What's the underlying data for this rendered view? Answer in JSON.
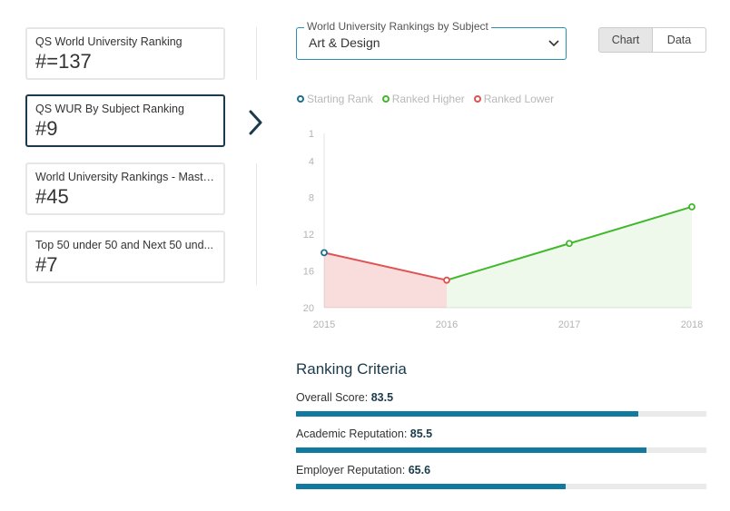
{
  "rankings": [
    {
      "label": "QS World University Ranking",
      "value": "#=137",
      "active": false
    },
    {
      "label": "QS WUR By Subject Ranking",
      "value": "#9",
      "active": true
    },
    {
      "label": "World University Rankings - Maste...",
      "value": "#45",
      "active": false
    },
    {
      "label": "Top 50 under 50 and Next 50 und...",
      "value": "#7",
      "active": false
    }
  ],
  "subject_select": {
    "legend": "World University Rankings by Subject",
    "value": "Art & Design"
  },
  "view_toggle": {
    "chart_label": "Chart",
    "data_label": "Data",
    "selected": "Chart"
  },
  "legend": {
    "starting": "Starting Rank",
    "higher": "Ranked Higher",
    "lower": "Ranked Lower"
  },
  "colors": {
    "starting": "#1b6f8f",
    "higher": "#3fb82a",
    "lower": "#e05252",
    "bar_fill": "#117a9e"
  },
  "chart_data": {
    "type": "line",
    "x": [
      "2015",
      "2016",
      "2017",
      "2018"
    ],
    "values": [
      14,
      17,
      13,
      9
    ],
    "y_ticks": [
      1,
      4,
      8,
      12,
      16,
      20
    ],
    "ylim": [
      1,
      20
    ],
    "y_inverted": true,
    "grid": false
  },
  "criteria": {
    "title": "Ranking Criteria",
    "items": [
      {
        "label": "Overall Score:",
        "score": "83.5",
        "fraction": 0.835
      },
      {
        "label": "Academic Reputation:",
        "score": "85.5",
        "fraction": 0.855
      },
      {
        "label": "Employer Reputation:",
        "score": "65.6",
        "fraction": 0.656
      }
    ]
  }
}
